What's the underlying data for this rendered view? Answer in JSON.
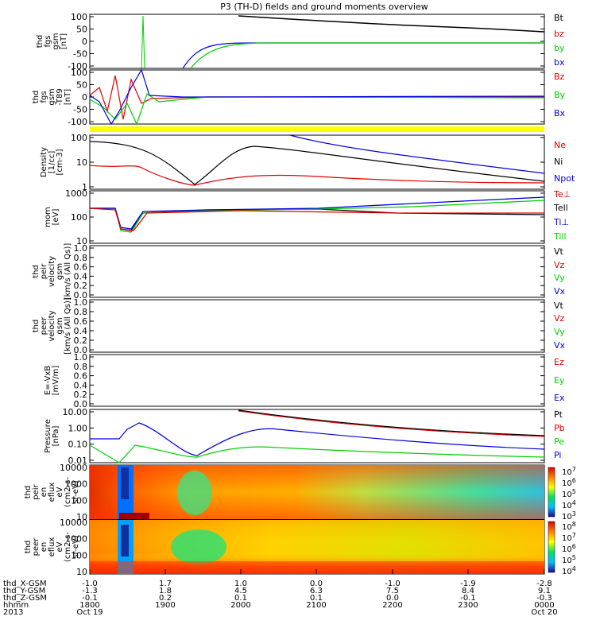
{
  "title": "P3 (TH-D) fields and ground moments overview",
  "colors": {
    "black": "#000000",
    "red": "#e00000",
    "green": "#00d000",
    "blue": "#0000e0",
    "yellow": "#ffff00"
  },
  "chart_data": [
    {
      "type": "line",
      "panel": "fgs",
      "ylabel": [
        "thd",
        "fgs",
        "gsm",
        "[nT]"
      ],
      "yticks": [
        "100",
        "50",
        "0",
        "-50",
        "-100"
      ],
      "ylim": [
        -100,
        100
      ],
      "legend": [
        {
          "name": "Bt",
          "color": "#000000"
        },
        {
          "name": "bz",
          "color": "#e00000"
        },
        {
          "name": "by",
          "color": "#00d000"
        },
        {
          "name": "bx",
          "color": "#0000e0"
        }
      ]
    },
    {
      "type": "line",
      "panel": "fgs-t89",
      "ylabel": [
        "thd",
        "fgs",
        "gsm",
        "-T89",
        "[nT]"
      ],
      "yticks": [
        "100",
        "50",
        "0",
        "-50",
        "-100"
      ],
      "ylim": [
        -120,
        120
      ],
      "legend": [
        {
          "name": "Bz",
          "color": "#e00000"
        },
        {
          "name": "By",
          "color": "#00d000"
        },
        {
          "name": "Bx",
          "color": "#0000e0"
        }
      ]
    },
    {
      "type": "line",
      "panel": "density",
      "scale": "log",
      "ylabel": [
        "Density",
        "[1/cc]",
        "[cm-3]"
      ],
      "yticks": [
        "100",
        "10",
        "1"
      ],
      "legend": [
        {
          "name": "Ne",
          "color": "#e00000"
        },
        {
          "name": "Ni",
          "color": "#000000"
        },
        {
          "name": "Npot",
          "color": "#0000e0"
        }
      ]
    },
    {
      "type": "line",
      "panel": "temperature",
      "scale": "log",
      "ylabel": [
        "mom",
        "[eV]"
      ],
      "yticks": [
        "1000",
        "100",
        "10"
      ],
      "legend": [
        {
          "name": "Te⊥",
          "color": "#e00000"
        },
        {
          "name": "Tell",
          "color": "#000000"
        },
        {
          "name": "Ti⊥",
          "color": "#0000e0"
        },
        {
          "name": "Till",
          "color": "#00d000"
        }
      ]
    },
    {
      "type": "line",
      "panel": "peir-velocity",
      "ylabel": [
        "thd",
        "peir",
        "velocity",
        "gsm",
        "[km/s (All Qs)]"
      ],
      "yticks": [
        "1.0",
        "0.8",
        "0.6",
        "0.4",
        "0.2",
        "0.0"
      ],
      "legend": [
        {
          "name": "Vt",
          "color": "#000000"
        },
        {
          "name": "Vz",
          "color": "#e00000"
        },
        {
          "name": "Vy",
          "color": "#00d000"
        },
        {
          "name": "Vx",
          "color": "#0000e0"
        }
      ]
    },
    {
      "type": "line",
      "panel": "peer-velocity",
      "ylabel": [
        "thd",
        "peer",
        "velocity",
        "gsm",
        "[km/s (All Qs)]"
      ],
      "yticks": [
        "1.0",
        "0.8",
        "0.6",
        "0.4",
        "0.2",
        "0.0"
      ],
      "legend": [
        {
          "name": "Vt",
          "color": "#000000"
        },
        {
          "name": "Vz",
          "color": "#e00000"
        },
        {
          "name": "Vy",
          "color": "#00d000"
        },
        {
          "name": "Vx",
          "color": "#0000e0"
        }
      ]
    },
    {
      "type": "line",
      "panel": "e-vxb",
      "ylabel": [
        "E=-VxB",
        "[mV/m]"
      ],
      "yticks": [
        "1.0",
        "0.8",
        "0.6",
        "0.4",
        "0.2",
        "0.0"
      ],
      "legend": [
        {
          "name": "Ez",
          "color": "#e00000"
        },
        {
          "name": "Ey",
          "color": "#00d000"
        },
        {
          "name": "Ex",
          "color": "#0000e0"
        }
      ]
    },
    {
      "type": "line",
      "panel": "pressure",
      "scale": "log",
      "ylabel": [
        "Pressure",
        "[nPa]"
      ],
      "yticks": [
        "10.00",
        "1.00",
        "0.10",
        "0.01"
      ],
      "legend": [
        {
          "name": "Pt",
          "color": "#000000"
        },
        {
          "name": "Pb",
          "color": "#e00000"
        },
        {
          "name": "Pe",
          "color": "#00d000"
        },
        {
          "name": "Pi",
          "color": "#0000e0"
        }
      ]
    },
    {
      "type": "heatmap",
      "panel": "peir-spectrogram",
      "ylabel": [
        "thd",
        "peir",
        "en",
        "eflux",
        "eV",
        "(cm2-s-",
        "sr-eV)"
      ],
      "yticks": [
        "10000",
        "1000",
        "100",
        "10"
      ],
      "colorbar": [
        "10^7",
        "10^6",
        "10^5",
        "10^4",
        "10^3"
      ]
    },
    {
      "type": "heatmap",
      "panel": "peer-spectrogram",
      "ylabel": [
        "thd",
        "peer",
        "en",
        "eflux",
        "eV",
        "(cm2-s-",
        "sr-eV)"
      ],
      "yticks": [
        "10000",
        "1000",
        "100",
        "10"
      ],
      "colorbar": [
        "10^8",
        "10^7",
        "10^6",
        "10^5",
        "10^4"
      ]
    }
  ],
  "xaxis": {
    "row_labels": [
      "thd_X-GSM",
      "thd_Y-GSM",
      "thd_Z-GSM",
      "hhmm",
      "2013"
    ],
    "columns": [
      {
        "values": [
          "-1.0",
          "-1.3",
          "-0.1",
          "1800",
          "Oct 19"
        ]
      },
      {
        "values": [
          "1.7",
          "1.8",
          "0.2",
          "1900",
          ""
        ]
      },
      {
        "values": [
          "1.0",
          "4.5",
          "0.1",
          "2000",
          ""
        ]
      },
      {
        "values": [
          "0.0",
          "6.3",
          "0.1",
          "2100",
          ""
        ]
      },
      {
        "values": [
          "-1.0",
          "7.5",
          "0.0",
          "2200",
          ""
        ]
      },
      {
        "values": [
          "-1.9",
          "8.4",
          "-0.1",
          "2300",
          ""
        ]
      },
      {
        "values": [
          "-2.8",
          "9.1",
          "-0.3",
          "0000",
          "Oct 20"
        ]
      }
    ]
  }
}
